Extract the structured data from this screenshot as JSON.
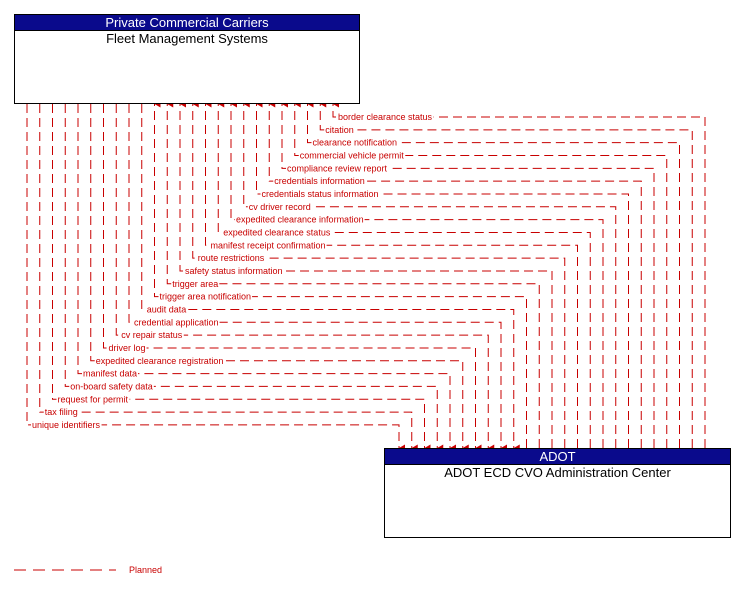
{
  "nodes": {
    "fleet": {
      "header": "Private Commercial Carriers",
      "title": "Fleet Management Systems"
    },
    "adot": {
      "header": "ADOT",
      "title": "ADOT ECD CVO Administration Center"
    }
  },
  "flows": [
    {
      "label": "border clearance status",
      "direction": "to-fleet"
    },
    {
      "label": "citation",
      "direction": "to-fleet"
    },
    {
      "label": "clearance notification",
      "direction": "to-fleet"
    },
    {
      "label": "commercial vehicle permit",
      "direction": "to-fleet"
    },
    {
      "label": "compliance review report",
      "direction": "to-fleet"
    },
    {
      "label": "credentials information",
      "direction": "to-fleet"
    },
    {
      "label": "credentials status information",
      "direction": "to-fleet"
    },
    {
      "label": "cv driver record",
      "direction": "to-fleet"
    },
    {
      "label": "expedited clearance information",
      "direction": "to-fleet"
    },
    {
      "label": "expedited clearance status",
      "direction": "to-fleet"
    },
    {
      "label": "manifest receipt confirmation",
      "direction": "to-fleet"
    },
    {
      "label": "route restrictions",
      "direction": "to-fleet"
    },
    {
      "label": "safety status information",
      "direction": "to-fleet"
    },
    {
      "label": "trigger area",
      "direction": "to-fleet"
    },
    {
      "label": "trigger area notification",
      "direction": "to-fleet"
    },
    {
      "label": "audit data",
      "direction": "to-adot"
    },
    {
      "label": "credential application",
      "direction": "to-adot"
    },
    {
      "label": "cv repair status",
      "direction": "to-adot"
    },
    {
      "label": "driver log",
      "direction": "to-adot"
    },
    {
      "label": "expedited clearance registration",
      "direction": "to-adot"
    },
    {
      "label": "manifest data",
      "direction": "to-adot"
    },
    {
      "label": "on-board safety data",
      "direction": "to-adot"
    },
    {
      "label": "request for permit",
      "direction": "to-adot"
    },
    {
      "label": "tax filing",
      "direction": "to-adot"
    },
    {
      "label": "unique identifiers",
      "direction": "to-adot"
    }
  ],
  "legend": {
    "label": "Planned"
  },
  "colors": {
    "flow": "#c80000",
    "header": "#0a0a8c"
  }
}
